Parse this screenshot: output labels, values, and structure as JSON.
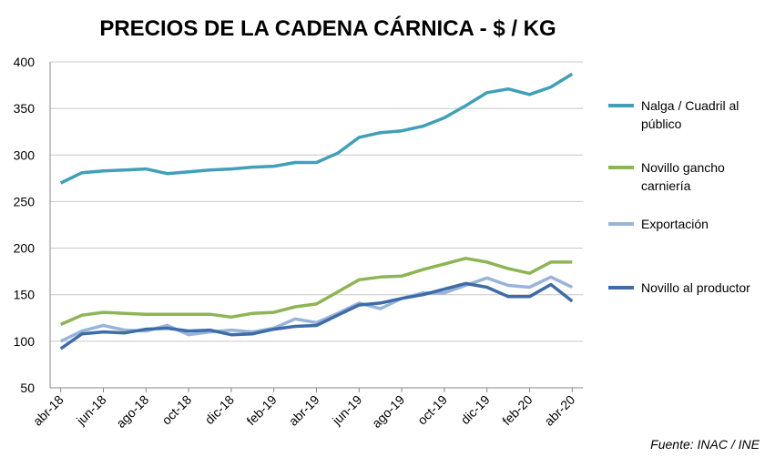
{
  "chart_data": {
    "type": "line",
    "title": "PRECIOS DE LA CADENA CÁRNICA - $ / KG",
    "source": "Fuente: INAC / INE",
    "categories": [
      "abr-18",
      null,
      "jun-18",
      null,
      "ago-18",
      null,
      "oct-18",
      null,
      "dic-18",
      null,
      "feb-19",
      null,
      "abr-19",
      null,
      "jun-19",
      null,
      "ago-19",
      null,
      "oct-19",
      null,
      "dic-19",
      null,
      "feb-20",
      null,
      "abr-20"
    ],
    "series": [
      {
        "name": "Nalga / Cuadril al público",
        "color": "#3fa0b8",
        "values": [
          270,
          281,
          283,
          284,
          285,
          280,
          282,
          284,
          285,
          287,
          288,
          292,
          292,
          302,
          319,
          324,
          326,
          331,
          340,
          353,
          367,
          371,
          365,
          373,
          387
        ]
      },
      {
        "name": "Novillo gancho carniería",
        "color": "#8db553",
        "values": [
          118,
          128,
          131,
          130,
          129,
          129,
          129,
          129,
          126,
          130,
          131,
          137,
          140,
          153,
          166,
          169,
          170,
          177,
          183,
          189,
          185,
          178,
          173,
          185,
          185
        ]
      },
      {
        "name": "Exportación",
        "color": "#98b4da",
        "values": [
          100,
          111,
          117,
          112,
          111,
          117,
          107,
          110,
          112,
          110,
          114,
          124,
          120,
          130,
          141,
          135,
          146,
          152,
          152,
          160,
          168,
          160,
          158,
          169,
          158
        ]
      },
      {
        "name": "Novillo al productor",
        "color": "#3e6ca8",
        "values": [
          92,
          108,
          110,
          109,
          113,
          114,
          111,
          112,
          107,
          108,
          113,
          116,
          117,
          128,
          139,
          141,
          146,
          150,
          156,
          162,
          158,
          148,
          148,
          161,
          143
        ]
      }
    ],
    "ylim": [
      50,
      400
    ],
    "yticks": [
      50,
      100,
      150,
      200,
      250,
      300,
      350,
      400
    ],
    "grid": true
  }
}
